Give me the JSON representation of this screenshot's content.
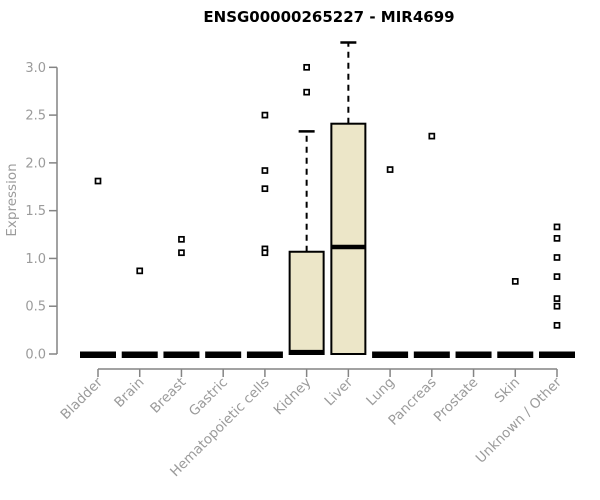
{
  "chart_data": {
    "type": "boxplot",
    "title": "ENSG00000265227 - MIR4699",
    "ylabel": "Expression",
    "xlabel": "",
    "ylim": [
      0.0,
      3.3
    ],
    "yticks": [
      0.0,
      0.5,
      1.0,
      1.5,
      2.0,
      2.5,
      3.0
    ],
    "grid": false,
    "legend": false,
    "categories": [
      "Bladder",
      "Brain",
      "Breast",
      "Gastric",
      "Hematopoietic cells",
      "Kidney",
      "Liver",
      "Lung",
      "Pancreas",
      "Prostate",
      "Skin",
      "Unknown / Other"
    ],
    "boxes": [
      {
        "category": "Bladder",
        "q1": 0,
        "median": 0,
        "q3": 0,
        "whisker_low": 0,
        "whisker_high": 0,
        "outliers": [
          1.81
        ]
      },
      {
        "category": "Brain",
        "q1": 0,
        "median": 0,
        "q3": 0,
        "whisker_low": 0,
        "whisker_high": 0,
        "outliers": [
          0.87
        ]
      },
      {
        "category": "Breast",
        "q1": 0,
        "median": 0,
        "q3": 0,
        "whisker_low": 0,
        "whisker_high": 0,
        "outliers": [
          1.2,
          1.06
        ]
      },
      {
        "category": "Gastric",
        "q1": 0,
        "median": 0,
        "q3": 0,
        "whisker_low": 0,
        "whisker_high": 0,
        "outliers": []
      },
      {
        "category": "Hematopoietic cells",
        "q1": 0,
        "median": 0,
        "q3": 0,
        "whisker_low": 0,
        "whisker_high": 0,
        "outliers": [
          2.5,
          1.92,
          1.73,
          1.1,
          1.06
        ]
      },
      {
        "category": "Kidney",
        "q1": 0,
        "median": 0.02,
        "q3": 1.07,
        "whisker_low": 0,
        "whisker_high": 2.33,
        "outliers": [
          3.0,
          2.74
        ]
      },
      {
        "category": "Liver",
        "q1": 0,
        "median": 1.12,
        "q3": 2.41,
        "whisker_low": 0,
        "whisker_high": 3.26,
        "outliers": []
      },
      {
        "category": "Lung",
        "q1": 0,
        "median": 0,
        "q3": 0,
        "whisker_low": 0,
        "whisker_high": 0,
        "outliers": [
          1.93
        ]
      },
      {
        "category": "Pancreas",
        "q1": 0,
        "median": 0,
        "q3": 0,
        "whisker_low": 0,
        "whisker_high": 0,
        "outliers": [
          2.28
        ]
      },
      {
        "category": "Prostate",
        "q1": 0,
        "median": 0,
        "q3": 0,
        "whisker_low": 0,
        "whisker_high": 0,
        "outliers": []
      },
      {
        "category": "Skin",
        "q1": 0,
        "median": 0,
        "q3": 0,
        "whisker_low": 0,
        "whisker_high": 0,
        "outliers": [
          0.76
        ]
      },
      {
        "category": "Unknown / Other",
        "q1": 0,
        "median": 0,
        "q3": 0,
        "whisker_low": 0,
        "whisker_high": 0,
        "outliers": [
          1.33,
          1.21,
          1.01,
          0.81,
          0.58,
          0.5,
          0.3
        ]
      }
    ],
    "colors": {
      "box_fill": "#ECE6C8",
      "box_border": "#000000",
      "median": "#000000",
      "whisker": "#000000",
      "outlier": "#000000",
      "axis": "#848484",
      "tick_label": "#9B9B9B",
      "title": "#000000",
      "background": "#FFFFFF"
    }
  }
}
